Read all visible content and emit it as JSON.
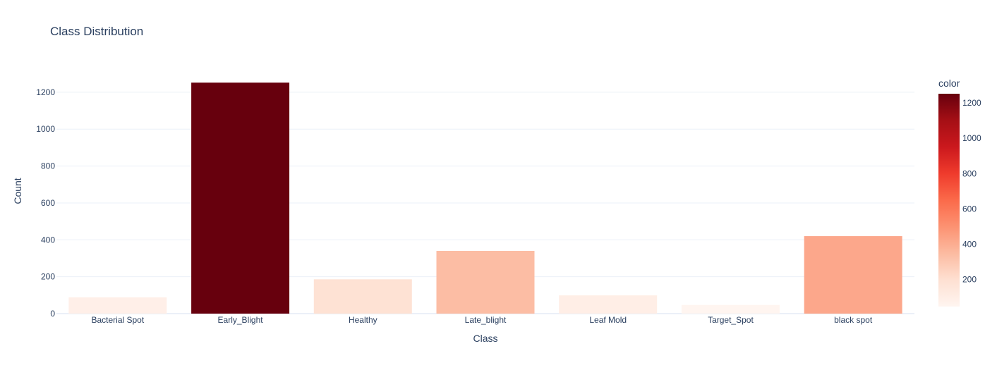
{
  "chart_data": {
    "type": "bar",
    "title": "Class Distribution",
    "xlabel": "Class",
    "ylabel": "Count",
    "categories": [
      "Bacterial Spot",
      "Early_Blight",
      "Healthy",
      "Late_blight",
      "Leaf Mold",
      "Target_Spot",
      "black spot"
    ],
    "values": [
      88,
      1252,
      186,
      340,
      99,
      47,
      420
    ],
    "ylim": [
      0,
      1318
    ],
    "yticks": [
      0,
      200,
      400,
      600,
      800,
      1000,
      1200
    ],
    "grid": true,
    "colorbar": {
      "title": "color",
      "colorscale": "Reds",
      "range": [
        47,
        1252
      ],
      "ticks": [
        200,
        400,
        600,
        800,
        1000,
        1200
      ]
    }
  }
}
